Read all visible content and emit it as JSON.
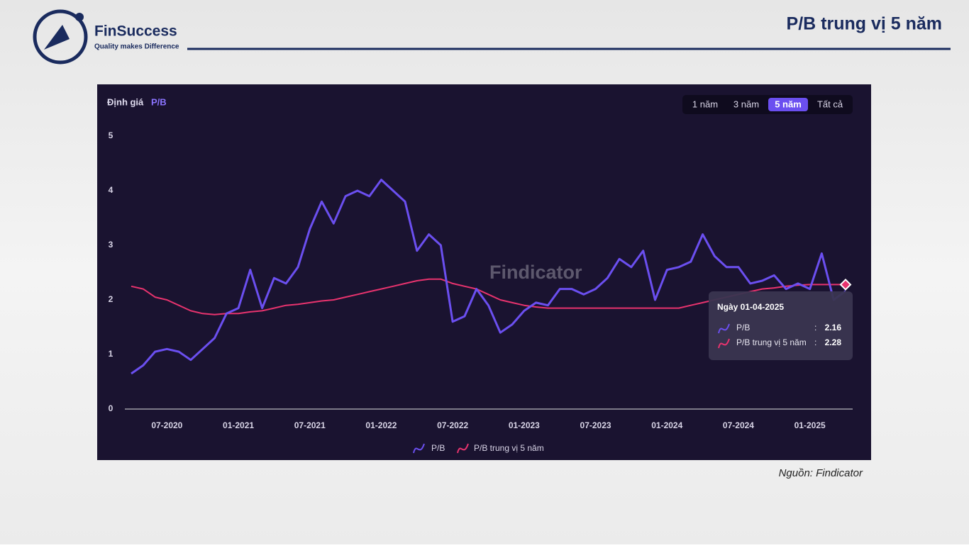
{
  "slide": {
    "title": "P/B trung vị 5 năm",
    "brand": "FinSuccess",
    "tagline": "Quality makes Difference",
    "source": "Nguồn: Findicator"
  },
  "chart_data": {
    "type": "line",
    "heading": "Định giá",
    "heading_metric": "P/B",
    "watermark": "Findicator",
    "range_buttons": [
      "1 năm",
      "3 năm",
      "5 năm",
      "Tất cả"
    ],
    "active_button": 2,
    "x": [
      "04-2020",
      "05-2020",
      "06-2020",
      "07-2020",
      "08-2020",
      "09-2020",
      "10-2020",
      "11-2020",
      "12-2020",
      "01-2021",
      "02-2021",
      "03-2021",
      "04-2021",
      "05-2021",
      "06-2021",
      "07-2021",
      "08-2021",
      "09-2021",
      "10-2021",
      "11-2021",
      "12-2021",
      "01-2022",
      "02-2022",
      "03-2022",
      "04-2022",
      "05-2022",
      "06-2022",
      "07-2022",
      "08-2022",
      "09-2022",
      "10-2022",
      "11-2022",
      "12-2022",
      "01-2023",
      "02-2023",
      "03-2023",
      "04-2023",
      "05-2023",
      "06-2023",
      "07-2023",
      "08-2023",
      "09-2023",
      "10-2023",
      "11-2023",
      "12-2023",
      "01-2024",
      "02-2024",
      "03-2024",
      "04-2024",
      "05-2024",
      "06-2024",
      "07-2024",
      "08-2024",
      "09-2024",
      "10-2024",
      "11-2024",
      "12-2024",
      "01-2025",
      "02-2025",
      "03-2025",
      "04-2025"
    ],
    "xticks": [
      "07-2020",
      "01-2021",
      "07-2021",
      "01-2022",
      "07-2022",
      "01-2023",
      "07-2023",
      "01-2024",
      "07-2024",
      "01-2025"
    ],
    "series": [
      {
        "name": "P/B",
        "color": "#6b4ff0",
        "values": [
          0.65,
          0.8,
          1.05,
          1.1,
          1.05,
          0.9,
          1.1,
          1.3,
          1.75,
          1.85,
          2.55,
          1.85,
          2.4,
          2.3,
          2.6,
          3.3,
          3.8,
          3.4,
          3.9,
          4.0,
          3.9,
          4.2,
          4.0,
          3.8,
          2.9,
          3.2,
          3.0,
          1.6,
          1.7,
          2.2,
          1.9,
          1.4,
          1.55,
          1.8,
          1.95,
          1.9,
          2.2,
          2.2,
          2.1,
          2.2,
          2.4,
          2.75,
          2.6,
          2.9,
          2.0,
          2.55,
          2.6,
          2.7,
          3.2,
          2.8,
          2.6,
          2.6,
          2.3,
          2.35,
          2.45,
          2.2,
          2.3,
          2.2,
          2.85,
          2.0,
          2.16
        ]
      },
      {
        "name": "P/B trung vị 5 năm",
        "color": "#e8336e",
        "values": [
          2.25,
          2.2,
          2.05,
          2.0,
          1.9,
          1.8,
          1.75,
          1.73,
          1.75,
          1.75,
          1.78,
          1.8,
          1.85,
          1.9,
          1.92,
          1.95,
          1.98,
          2.0,
          2.05,
          2.1,
          2.15,
          2.2,
          2.25,
          2.3,
          2.35,
          2.38,
          2.38,
          2.3,
          2.25,
          2.2,
          2.1,
          2.0,
          1.95,
          1.9,
          1.87,
          1.85,
          1.85,
          1.85,
          1.85,
          1.85,
          1.85,
          1.85,
          1.85,
          1.85,
          1.85,
          1.85,
          1.85,
          1.9,
          1.95,
          2.0,
          2.05,
          2.1,
          2.15,
          2.2,
          2.22,
          2.25,
          2.27,
          2.28,
          2.28,
          2.28,
          2.28
        ]
      }
    ],
    "ylim": [
      0,
      5
    ],
    "yticks": [
      0,
      1,
      2,
      3,
      4,
      5
    ],
    "grid": false,
    "tooltip": {
      "title": "Ngày 01-04-2025",
      "index": 60
    }
  }
}
